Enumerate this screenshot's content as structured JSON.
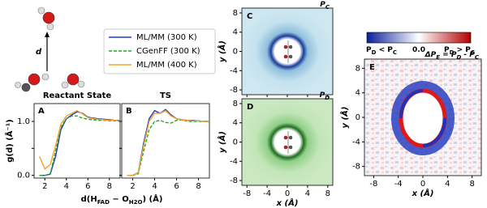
{
  "illustration": {
    "label": "d"
  },
  "chart_data": [
    {
      "type": "line",
      "panel": "A",
      "title": "Reactant State",
      "ylabel": "g(d) (Å⁻¹)",
      "xlabel": [
        "d(H",
        "FAD",
        " − O",
        "H2O",
        ") (Å)"
      ],
      "xlim": [
        1,
        9
      ],
      "ylim": [
        -0.05,
        1.33
      ],
      "xticks": [
        2,
        4,
        6,
        8
      ],
      "yticks": [
        {
          "value": 0,
          "label": "0.0"
        },
        0.5,
        {
          "value": 1,
          "label": "1.0"
        }
      ],
      "x": [
        1.5,
        2,
        2.5,
        3,
        3.5,
        4,
        4.5,
        5,
        5.5,
        6,
        6.5,
        7,
        7.5,
        8,
        8.5,
        9
      ],
      "series": [
        {
          "name": "ML/MM (300 K)",
          "color": "#1f3fbf",
          "dash": false,
          "values": [
            0,
            0,
            0.02,
            0.35,
            0.85,
            1.05,
            1.12,
            1.18,
            1.15,
            1.08,
            1.06,
            1.05,
            1.04,
            1.03,
            1.02,
            1.02
          ]
        },
        {
          "name": "CGenFF (300 K)",
          "color": "#22aa22",
          "dash": true,
          "values": [
            0,
            0,
            0.03,
            0.45,
            0.9,
            1.05,
            1.1,
            1.1,
            1.06,
            1.04,
            1.03,
            1.02,
            1.02,
            1.01,
            1.01,
            1.0
          ]
        },
        {
          "name": "ML/MM (400 K)",
          "color": "#f5a030",
          "dash": false,
          "values": [
            0.35,
            0.12,
            0.2,
            0.55,
            0.95,
            1.1,
            1.15,
            1.2,
            1.14,
            1.07,
            1.05,
            1.04,
            1.03,
            1.02,
            1.02,
            1.01
          ]
        }
      ]
    },
    {
      "type": "line",
      "panel": "B",
      "title": "TS",
      "xlim": [
        1,
        9
      ],
      "ylim": [
        -0.05,
        1.33
      ],
      "xticks": [
        2,
        4,
        6,
        8
      ],
      "yticks": [
        0,
        0.5,
        1
      ],
      "x": [
        1.5,
        2,
        2.5,
        3,
        3.5,
        4,
        4.5,
        5,
        5.5,
        6,
        6.5,
        7,
        7.5,
        8,
        8.5,
        9
      ],
      "series": [
        {
          "color": "#1f3fbf",
          "dash": false,
          "values": [
            0,
            0,
            0.05,
            0.6,
            1.05,
            1.2,
            1.15,
            1.22,
            1.12,
            1.05,
            1.03,
            1.02,
            1.02,
            1.01,
            1.0,
            1.0
          ]
        },
        {
          "color": "#22aa22",
          "dash": true,
          "values": [
            0,
            0,
            0.03,
            0.45,
            0.85,
            1.0,
            1.02,
            0.98,
            0.97,
            1.02,
            1.03,
            1.0,
            1.0,
            1.0,
            1.0,
            0.99
          ]
        },
        {
          "color": "#f5a030",
          "dash": false,
          "values": [
            0,
            0,
            0.05,
            0.55,
            1.0,
            1.15,
            1.15,
            1.2,
            1.1,
            1.05,
            1.03,
            1.02,
            1.01,
            1.01,
            1.0,
            1.0
          ]
        }
      ]
    },
    {
      "type": "heatmap",
      "panel": "C",
      "title": [
        "P",
        "C"
      ],
      "ylabel": "y (Å)",
      "xlim": [
        -9,
        9
      ],
      "ylim": [
        -9,
        9
      ],
      "yticks": [
        -8,
        -4,
        0,
        4,
        8
      ],
      "xticks": [
        -8,
        -4,
        0,
        4,
        8
      ],
      "show_xticklabels": false
    },
    {
      "type": "heatmap",
      "panel": "D",
      "title": [
        "P",
        "D"
      ],
      "ylabel": "y (Å)",
      "xlabel": "x (Å)",
      "xlim": [
        -9,
        9
      ],
      "ylim": [
        -9,
        9
      ],
      "yticks": [
        -8,
        -4,
        0,
        4,
        8
      ],
      "xticks": [
        -8,
        -4,
        0,
        4,
        8
      ],
      "show_xticklabels": true
    },
    {
      "type": "heatmap",
      "panel": "E",
      "title": [
        "ΔP",
        "E",
        " = P",
        "D",
        " - P",
        "C"
      ],
      "ylabel": "y (Å)",
      "xlabel": "x (Å)",
      "xlim": [
        -9.5,
        9.5
      ],
      "ylim": [
        -9.5,
        9.5
      ],
      "yticks": [
        -8,
        -4,
        0,
        4,
        8
      ],
      "xticks": [
        -8,
        -4,
        0,
        4,
        8
      ],
      "show_xticklabels": true,
      "colorbar_labels": [
        [
          "P",
          "D",
          " < P",
          "C"
        ],
        [
          "0.0"
        ],
        [
          "P",
          "D",
          " > P",
          "C"
        ]
      ]
    }
  ]
}
